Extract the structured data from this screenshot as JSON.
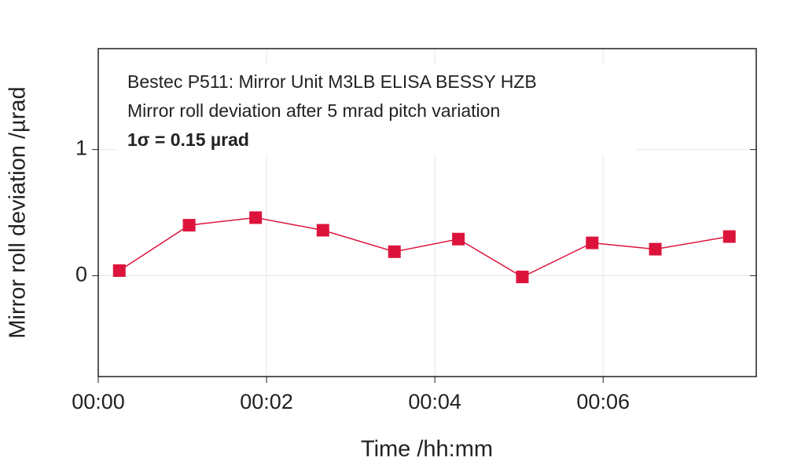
{
  "chart_data": {
    "type": "line",
    "annotations": [
      "Bestec P511: Mirror Unit M3LB ELISA BESSY HZB",
      "Mirror roll deviation after 5 mrad pitch variation",
      "1σ = 0.15 µrad"
    ],
    "xlabel": "Time /hh:mm",
    "ylabel": "Mirror roll deviation /µrad",
    "x": [
      0.25,
      1.08,
      1.87,
      2.67,
      3.52,
      4.28,
      5.04,
      5.87,
      6.62,
      7.5
    ],
    "series": [
      {
        "name": "Mirror roll deviation",
        "color": "#dc143c",
        "values": [
          0.04,
          0.4,
          0.46,
          0.36,
          0.19,
          0.29,
          -0.01,
          0.26,
          0.21,
          0.31
        ]
      }
    ],
    "xlim": [
      0,
      7.82
    ],
    "ylim": [
      -0.8,
      1.8
    ],
    "xticks": [
      {
        "value": 0,
        "label": "00:00"
      },
      {
        "value": 2,
        "label": "00:02"
      },
      {
        "value": 4,
        "label": "00:04"
      },
      {
        "value": 6,
        "label": "00:06"
      }
    ],
    "yticks": [
      0,
      1
    ],
    "grid": true
  }
}
